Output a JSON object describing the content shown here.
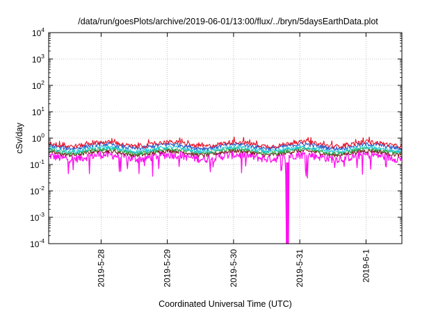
{
  "chart_data": {
    "type": "line",
    "title": "/data/run/goesPlots/archive/2019-06-01/13:00/flux/../bryn/5daysEarthData.plot",
    "xlabel": "Coordinated Universal Time (UTC)",
    "ylabel": "cSv/day",
    "x_scale": "time",
    "y_scale": "log",
    "xlim": [
      "2019-05-27 05:00",
      "2019-06-01 13:00"
    ],
    "ylim": [
      0.0001,
      10000
    ],
    "x_ticks": [
      "2019-5-28",
      "2019-5-29",
      "2019-5-30",
      "2019-5-31",
      "2019-6-1"
    ],
    "y_ticks": [
      {
        "base": "10",
        "exp": "4"
      },
      {
        "base": "10",
        "exp": "3"
      },
      {
        "base": "10",
        "exp": "2"
      },
      {
        "base": "10",
        "exp": "1"
      },
      {
        "base": "10",
        "exp": "0"
      },
      {
        "base": "10",
        "exp": "-1"
      },
      {
        "base": "10",
        "exp": "-2"
      },
      {
        "base": "10",
        "exp": "-3"
      },
      {
        "base": "10",
        "exp": "-4"
      }
    ],
    "grid": true,
    "legend": "none",
    "series": [
      {
        "color": "#e8132a",
        "typical_value": 0.6
      },
      {
        "color": "#2458c8",
        "typical_value": 0.5
      },
      {
        "color": "#20c8d8",
        "typical_value": 0.38
      },
      {
        "color": "#28a848",
        "typical_value": 0.33
      },
      {
        "color": "#7a1a1a",
        "typical_value": 0.28
      },
      {
        "color": "#ff10f0",
        "typical_value": 0.2,
        "dropout": [
          "2019-05-30 19:00",
          "2019-05-30 20:00"
        ]
      }
    ]
  }
}
